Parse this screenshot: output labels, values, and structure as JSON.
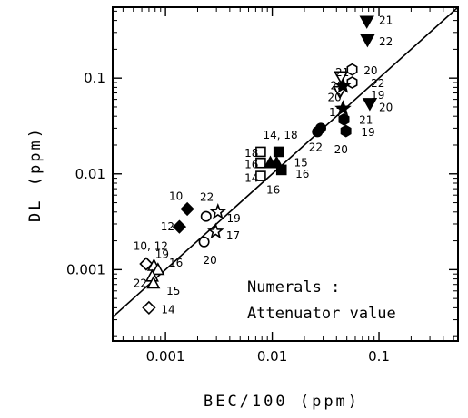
{
  "chart_data": {
    "type": "scatter",
    "xlabel": "BEC/100 (ppm)",
    "ylabel": "DL (ppm)",
    "xscale": "log",
    "yscale": "log",
    "xlim": [
      0.00032,
      0.55
    ],
    "ylim": [
      0.00018,
      0.55
    ],
    "x_ticks": [
      {
        "value": 0.001,
        "label": "0.001"
      },
      {
        "value": 0.01,
        "label": "0.01"
      },
      {
        "value": 0.1,
        "label": "0.1"
      }
    ],
    "y_ticks": [
      {
        "value": 0.001,
        "label": "0.001"
      },
      {
        "value": 0.01,
        "label": "0.01"
      },
      {
        "value": 0.1,
        "label": "0.1"
      }
    ],
    "reference_line": "y = x",
    "note": [
      "Numerals :",
      "Attenuator value"
    ],
    "points": [
      {
        "shape": "diamond",
        "filled": false,
        "x": 0.00066,
        "y": 0.00115
      },
      {
        "shape": "diamond",
        "filled": false,
        "x": 0.0007,
        "y": 0.0004
      },
      {
        "shape": "triangle",
        "filled": false,
        "x": 0.00078,
        "y": 0.0011
      },
      {
        "shape": "triangle",
        "filled": false,
        "x": 0.00085,
        "y": 0.001
      },
      {
        "shape": "triangle",
        "filled": false,
        "x": 0.00075,
        "y": 0.00085
      },
      {
        "shape": "triangle",
        "filled": false,
        "x": 0.00077,
        "y": 0.00072
      },
      {
        "shape": "diamond",
        "filled": true,
        "x": 0.00135,
        "y": 0.0028
      },
      {
        "shape": "diamond",
        "filled": true,
        "x": 0.0016,
        "y": 0.0043
      },
      {
        "shape": "circle",
        "filled": false,
        "x": 0.0024,
        "y": 0.0036
      },
      {
        "shape": "circle",
        "filled": false,
        "x": 0.0023,
        "y": 0.00195
      },
      {
        "shape": "star",
        "filled": false,
        "x": 0.0031,
        "y": 0.004
      },
      {
        "shape": "star",
        "filled": false,
        "x": 0.00295,
        "y": 0.0025
      },
      {
        "shape": "square",
        "filled": false,
        "x": 0.0078,
        "y": 0.017
      },
      {
        "shape": "square",
        "filled": false,
        "x": 0.0078,
        "y": 0.013
      },
      {
        "shape": "square",
        "filled": false,
        "x": 0.0078,
        "y": 0.0095
      },
      {
        "shape": "square",
        "filled": true,
        "x": 0.0115,
        "y": 0.017
      },
      {
        "shape": "square",
        "filled": true,
        "x": 0.0122,
        "y": 0.011
      },
      {
        "shape": "triangle",
        "filled": true,
        "x": 0.0096,
        "y": 0.013
      },
      {
        "shape": "triangle",
        "filled": true,
        "x": 0.011,
        "y": 0.013
      },
      {
        "shape": "circle",
        "filled": true,
        "x": 0.0265,
        "y": 0.0275
      },
      {
        "shape": "circle",
        "filled": true,
        "x": 0.0285,
        "y": 0.03
      },
      {
        "shape": "triangle-down",
        "filled": false,
        "x": 0.044,
        "y": 0.103
      },
      {
        "shape": "triangle-down",
        "filled": false,
        "x": 0.043,
        "y": 0.072
      },
      {
        "shape": "hexagon",
        "filled": false,
        "x": 0.056,
        "y": 0.123
      },
      {
        "shape": "hexagon",
        "filled": false,
        "x": 0.056,
        "y": 0.09
      },
      {
        "shape": "star",
        "filled": true,
        "x": 0.046,
        "y": 0.083
      },
      {
        "shape": "star",
        "filled": true,
        "x": 0.046,
        "y": 0.048
      },
      {
        "shape": "hexagon",
        "filled": true,
        "x": 0.047,
        "y": 0.037
      },
      {
        "shape": "hexagon",
        "filled": true,
        "x": 0.049,
        "y": 0.028
      },
      {
        "shape": "triangle-down",
        "filled": true,
        "x": 0.077,
        "y": 0.39
      },
      {
        "shape": "triangle-down",
        "filled": true,
        "x": 0.078,
        "y": 0.25
      },
      {
        "shape": "triangle-down",
        "filled": true,
        "x": 0.082,
        "y": 0.054
      }
    ],
    "annotations": [
      {
        "text": "21",
        "x": 0.1,
        "y": 0.4
      },
      {
        "text": "22",
        "x": 0.1,
        "y": 0.24
      },
      {
        "text": "21",
        "x": 0.039,
        "y": 0.115
      },
      {
        "text": "20",
        "x": 0.072,
        "y": 0.12
      },
      {
        "text": "22",
        "x": 0.035,
        "y": 0.083
      },
      {
        "text": "22",
        "x": 0.084,
        "y": 0.088
      },
      {
        "text": "19",
        "x": 0.084,
        "y": 0.066
      },
      {
        "text": "20",
        "x": 0.033,
        "y": 0.063
      },
      {
        "text": "20",
        "x": 0.1,
        "y": 0.0495
      },
      {
        "text": "17",
        "x": 0.034,
        "y": 0.044
      },
      {
        "text": "21",
        "x": 0.065,
        "y": 0.0365
      },
      {
        "text": "19",
        "x": 0.068,
        "y": 0.027
      },
      {
        "text": "22",
        "x": 0.022,
        "y": 0.019
      },
      {
        "text": "20",
        "x": 0.038,
        "y": 0.018
      },
      {
        "text": "14, 18",
        "x": 0.0082,
        "y": 0.0255
      },
      {
        "text": "18",
        "x": 0.0055,
        "y": 0.0165
      },
      {
        "text": "15",
        "x": 0.016,
        "y": 0.013
      },
      {
        "text": "16",
        "x": 0.0055,
        "y": 0.0125
      },
      {
        "text": "16",
        "x": 0.0165,
        "y": 0.01
      },
      {
        "text": "14",
        "x": 0.0055,
        "y": 0.009
      },
      {
        "text": "16",
        "x": 0.0088,
        "y": 0.0068
      },
      {
        "text": "10",
        "x": 0.00108,
        "y": 0.0058
      },
      {
        "text": "22",
        "x": 0.0021,
        "y": 0.0057
      },
      {
        "text": "19",
        "x": 0.00375,
        "y": 0.0034
      },
      {
        "text": "12",
        "x": 0.0009,
        "y": 0.0028
      },
      {
        "text": "17",
        "x": 0.0037,
        "y": 0.00225
      },
      {
        "text": "20",
        "x": 0.00225,
        "y": 0.00125
      },
      {
        "text": "10, 12",
        "x": 0.0005,
        "y": 0.00175
      },
      {
        "text": "19",
        "x": 0.0008,
        "y": 0.00145
      },
      {
        "text": "16",
        "x": 0.00108,
        "y": 0.00118
      },
      {
        "text": "22",
        "x": 0.0005,
        "y": 0.00072
      },
      {
        "text": "15",
        "x": 0.00102,
        "y": 0.0006
      },
      {
        "text": "14",
        "x": 0.00091,
        "y": 0.00038
      }
    ]
  }
}
